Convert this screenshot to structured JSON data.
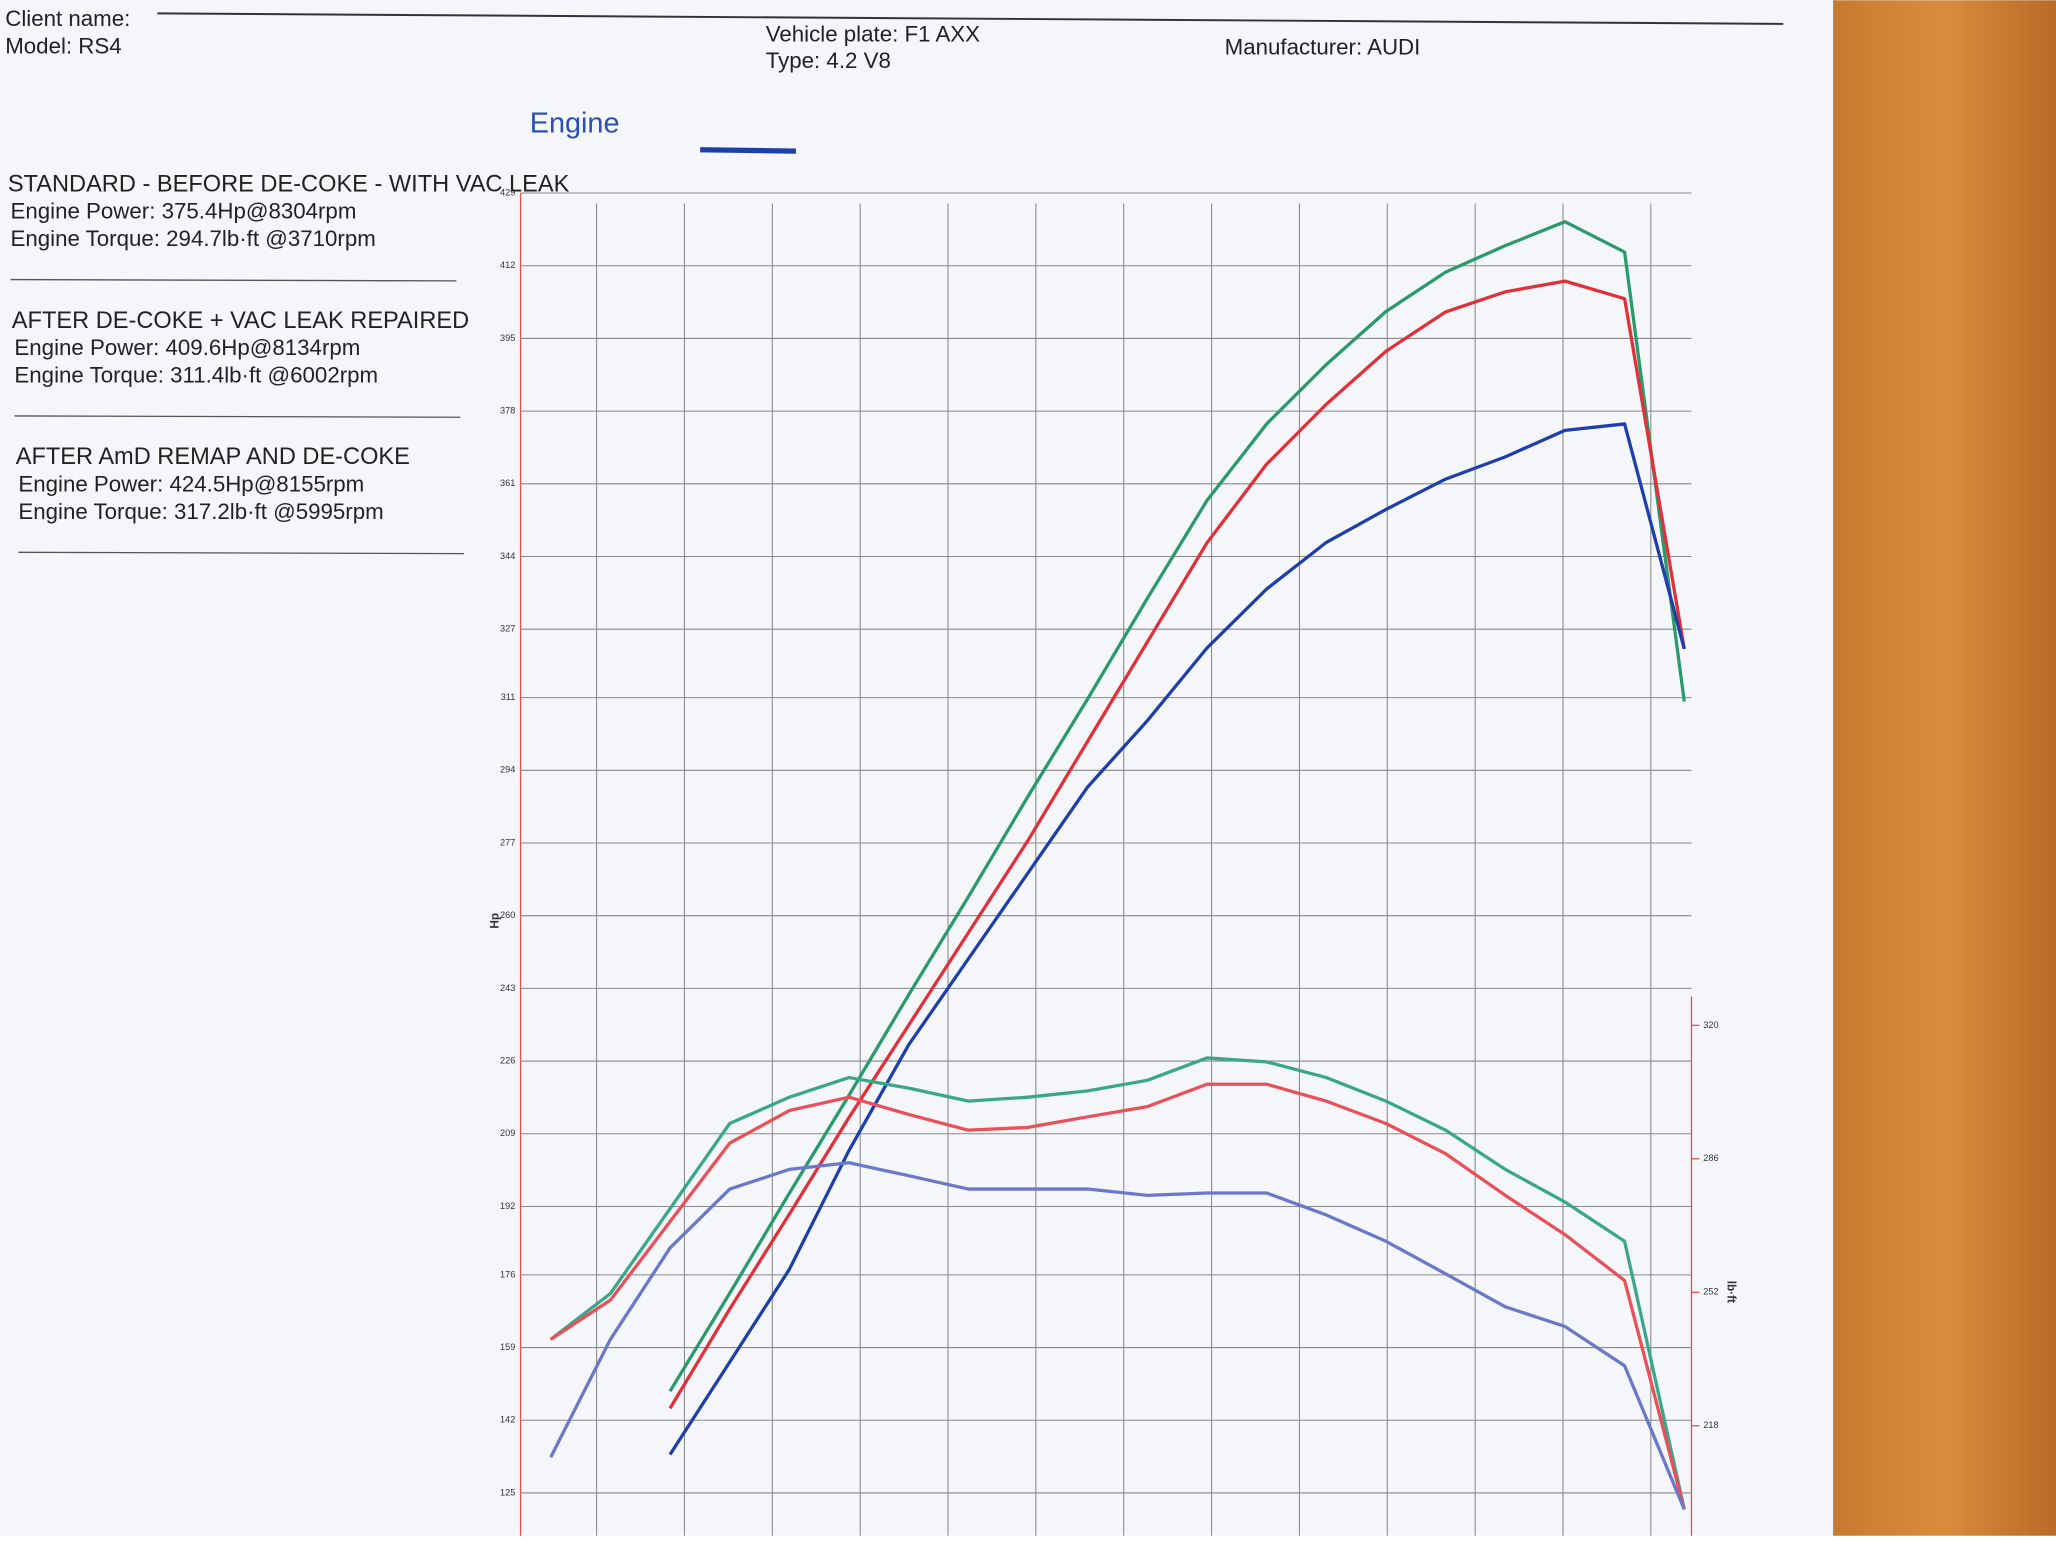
{
  "header": {
    "client": "Client name:",
    "model": "Model: RS4",
    "plate": "Vehicle plate: F1 AXX",
    "type": "Type: 4.2 V8",
    "manufacturer": "Manufacturer: AUDI"
  },
  "notes": [
    {
      "title": "STANDARD - BEFORE DE-COKE - WITH VAC LEAK",
      "power": "Engine Power: 375.4Hp@8304rpm",
      "torque": "Engine Torque: 294.7lb·ft @3710rpm"
    },
    {
      "title": "AFTER DE-COKE + VAC LEAK REPAIRED",
      "power": "Engine Power: 409.6Hp@8134rpm",
      "torque": "Engine Torque: 311.4lb·ft @6002rpm"
    },
    {
      "title": "AFTER AmD REMAP AND DE-COKE",
      "power": "Engine Power: 424.5Hp@8155rpm",
      "torque": "Engine Torque: 317.2lb·ft @5995rpm"
    }
  ],
  "chart_data": {
    "type": "line",
    "legend_label": "Engine",
    "legend_color": "#1f3fa8",
    "ylabel": "Hp",
    "y2label": "lb·ft",
    "categories": [
      null,
      null,
      null,
      null,
      null,
      null,
      null,
      null,
      null,
      null,
      null,
      null,
      null,
      null,
      null,
      null,
      null,
      null,
      null,
      null
    ],
    "ylim": [
      115,
      429
    ],
    "yticks": [
      125,
      142,
      159,
      176,
      192,
      209,
      226,
      243,
      260,
      277,
      294,
      311,
      327,
      344,
      361,
      378,
      395,
      412,
      429
    ],
    "y2lim": [
      190,
      532
    ],
    "y2ticks": [
      218,
      252,
      286,
      320
    ],
    "grid": true,
    "series": [
      {
        "color": "#2a9a6a",
        "values": [
          null,
          null,
          148.8,
          171.7,
          195.1,
          218,
          241.5,
          264.4,
          287.9,
          310.7,
          334.2,
          357.1,
          375,
          388.9,
          401.3,
          410.5,
          416.7,
          422.3,
          415.2,
          310.1
        ]
      },
      {
        "color": "#e0303a",
        "values": [
          null,
          null,
          144.8,
          168.0,
          190.2,
          212.8,
          234.4,
          256.0,
          277.6,
          300.8,
          324.0,
          347.2,
          365.6,
          379.6,
          392.0,
          401.2,
          405.9,
          408.4,
          404.3,
          322.4
        ]
      },
      {
        "color": "#1f3fa8",
        "values": [
          null,
          null,
          134.0,
          155.6,
          177.3,
          205.1,
          229.8,
          249.9,
          270.0,
          290.1,
          305.6,
          322.6,
          336.4,
          347.3,
          355.0,
          362.1,
          367.3,
          373.5,
          375.0,
          322.4
        ]
      },
      {
        "color": "#3aa888",
        "axis": "y2",
        "values": [
          240,
          251.7,
          273.3,
          295,
          301.7,
          306.7,
          304,
          300.7,
          301.7,
          303.3,
          306,
          311.7,
          310.7,
          306.7,
          300.7,
          293.3,
          283.3,
          275,
          265,
          196.7
        ]
      },
      {
        "color": "#e8505a",
        "axis": "y2",
        "values": [
          240,
          250,
          270,
          290,
          298.3,
          301.7,
          297.3,
          293.3,
          294,
          296.7,
          299.3,
          305,
          305,
          300.7,
          295,
          287.3,
          276.7,
          266.7,
          255,
          196.7
        ]
      },
      {
        "color": "#6a78c8",
        "axis": "y2",
        "values": [
          210,
          240,
          263.3,
          278.3,
          283.3,
          285,
          281.7,
          278.3,
          278.3,
          278.3,
          276.7,
          277.3,
          277.3,
          271.7,
          265,
          256.7,
          248.3,
          243.3,
          233.3,
          196.7
        ]
      }
    ]
  }
}
